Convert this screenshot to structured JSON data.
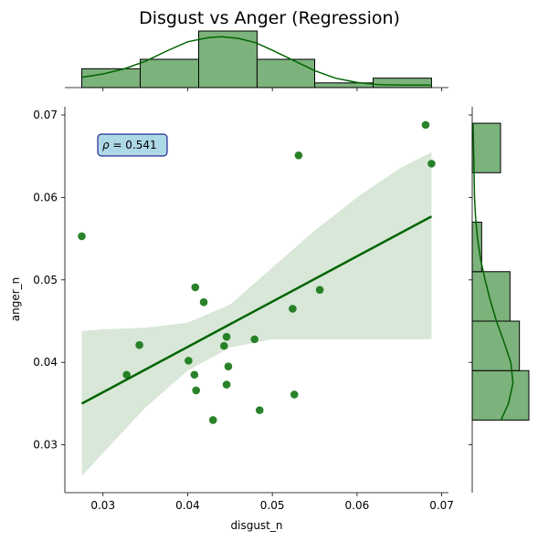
{
  "chart_data": {
    "type": "scatter",
    "title": "Disgust vs Anger (Regression)",
    "xlabel": "disgust_n",
    "ylabel": "anger_n",
    "xlim": [
      0.0255,
      0.0708
    ],
    "ylim": [
      0.0242,
      0.071
    ],
    "x_ticks": [
      0.03,
      0.04,
      0.05,
      0.06,
      0.07
    ],
    "y_ticks": [
      0.03,
      0.04,
      0.05,
      0.06,
      0.07
    ],
    "x_tick_labels": [
      "0.03",
      "0.04",
      "0.05",
      "0.06",
      "0.07"
    ],
    "y_tick_labels": [
      "0.03",
      "0.04",
      "0.05",
      "0.06",
      "0.07"
    ],
    "annotation": {
      "symbol": "ρ",
      "text": " = 0.541"
    },
    "colors": {
      "points": "#1e7b1e",
      "line": "#006400",
      "band": "#d8e7d8",
      "hist_fill": "#7cb27c",
      "hist_edge": "#000000",
      "kde": "#006400",
      "annot_fill": "#add8e6",
      "annot_edge": "#000080"
    },
    "points": [
      {
        "x": 0.0275,
        "y": 0.0553
      },
      {
        "x": 0.0328,
        "y": 0.0385
      },
      {
        "x": 0.0343,
        "y": 0.0421
      },
      {
        "x": 0.0401,
        "y": 0.0402
      },
      {
        "x": 0.0408,
        "y": 0.0385
      },
      {
        "x": 0.0409,
        "y": 0.0491
      },
      {
        "x": 0.041,
        "y": 0.0366
      },
      {
        "x": 0.0419,
        "y": 0.0473
      },
      {
        "x": 0.043,
        "y": 0.033
      },
      {
        "x": 0.0443,
        "y": 0.042
      },
      {
        "x": 0.0446,
        "y": 0.0431
      },
      {
        "x": 0.0446,
        "y": 0.0373
      },
      {
        "x": 0.0448,
        "y": 0.0395
      },
      {
        "x": 0.0479,
        "y": 0.0428
      },
      {
        "x": 0.0485,
        "y": 0.0342
      },
      {
        "x": 0.0524,
        "y": 0.0465
      },
      {
        "x": 0.0526,
        "y": 0.0361
      },
      {
        "x": 0.0531,
        "y": 0.0651
      },
      {
        "x": 0.0556,
        "y": 0.0488
      },
      {
        "x": 0.0681,
        "y": 0.0688
      },
      {
        "x": 0.0688,
        "y": 0.0641
      }
    ],
    "regression_line": {
      "x": [
        0.0275,
        0.0688
      ],
      "y": [
        0.035,
        0.0577
      ]
    },
    "confidence_band": {
      "x": [
        0.0275,
        0.03,
        0.035,
        0.04,
        0.045,
        0.05,
        0.055,
        0.06,
        0.065,
        0.0688
      ],
      "lower": [
        0.0262,
        0.029,
        0.0345,
        0.039,
        0.0418,
        0.0428,
        0.0428,
        0.0428,
        0.0428,
        0.0428
      ],
      "upper": [
        0.0438,
        0.044,
        0.0442,
        0.0448,
        0.047,
        0.0515,
        0.056,
        0.06,
        0.0635,
        0.0655
      ]
    },
    "x_histogram": {
      "bin_edges": [
        0.0275,
        0.0344,
        0.0413,
        0.0482,
        0.055,
        0.0619,
        0.0688
      ],
      "counts": [
        2,
        3,
        6,
        3,
        0.5,
        1
      ]
    },
    "y_histogram": {
      "bin_edges": [
        0.033,
        0.039,
        0.045,
        0.051,
        0.057,
        0.063,
        0.069
      ],
      "counts": [
        6,
        5,
        4,
        1,
        0,
        3
      ]
    },
    "x_kde": {
      "x": [
        0.0275,
        0.03,
        0.0325,
        0.035,
        0.0375,
        0.04,
        0.0425,
        0.044,
        0.046,
        0.048,
        0.05,
        0.0525,
        0.055,
        0.0575,
        0.06,
        0.0625,
        0.065,
        0.0688
      ],
      "d": [
        1.2,
        1.6,
        2.2,
        3.1,
        4.3,
        5.4,
        5.9,
        6.0,
        5.8,
        5.3,
        4.4,
        3.2,
        2.0,
        1.1,
        0.6,
        0.35,
        0.3,
        0.3
      ]
    },
    "y_kde": {
      "y": [
        0.033,
        0.035,
        0.0375,
        0.04,
        0.0425,
        0.045,
        0.0475,
        0.05,
        0.0525,
        0.055,
        0.0575,
        0.06,
        0.0625,
        0.065,
        0.0675,
        0.069
      ],
      "d": [
        3.8,
        4.8,
        5.4,
        5.1,
        4.2,
        3.2,
        2.4,
        1.7,
        1.1,
        0.7,
        0.45,
        0.3,
        0.25,
        0.2,
        0.15,
        0.1
      ]
    }
  }
}
